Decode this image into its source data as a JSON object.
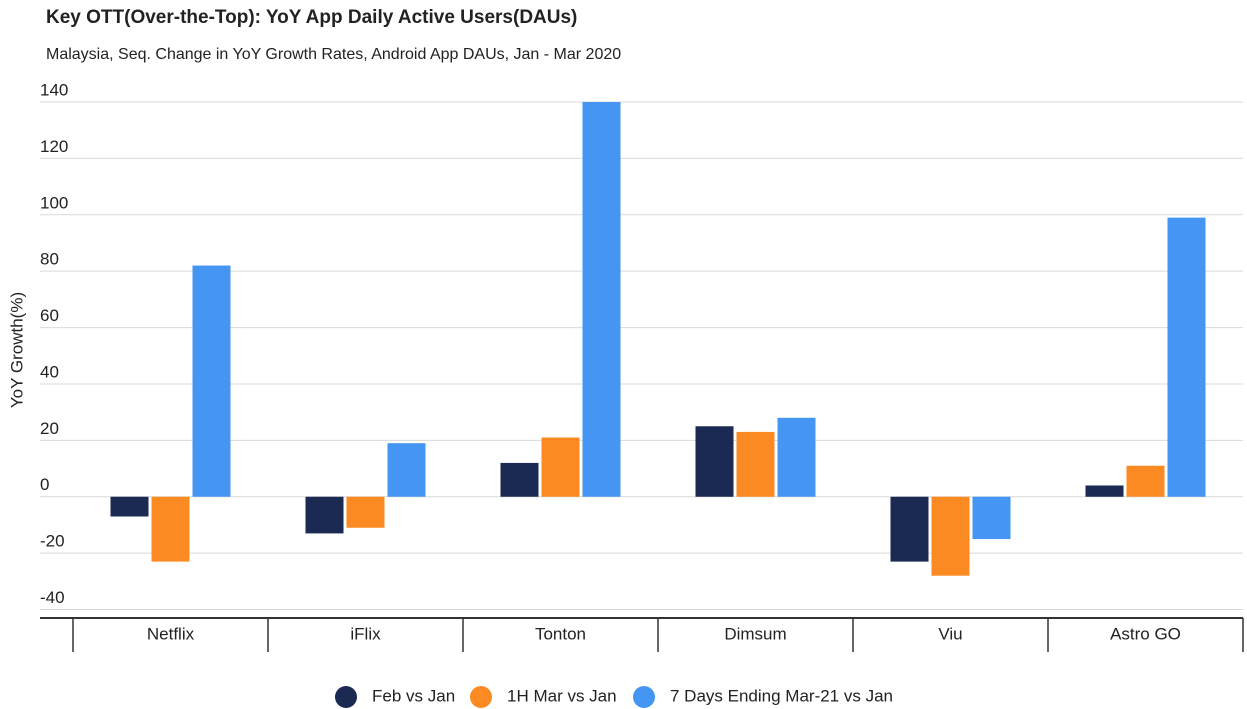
{
  "chart_data": {
    "type": "bar",
    "title": "Key OTT(Over-the-Top): YoY App Daily Active Users(DAUs)",
    "subtitle": "Malaysia, Seq. Change in YoY Growth Rates, Android App DAUs, Jan - Mar 2020",
    "y_label": "YoY Growth(%)",
    "categories": [
      "Netflix",
      "iFlix",
      "Tonton",
      "Dimsum",
      "Viu",
      "Astro GO"
    ],
    "series": [
      {
        "name": "Feb vs Jan",
        "color": "#1b2a52",
        "values": [
          -7,
          -13,
          12,
          25,
          -23,
          4
        ]
      },
      {
        "name": "1H Mar vs Jan",
        "color": "#fb8a22",
        "values": [
          -23,
          -11,
          21,
          23,
          -28,
          11
        ]
      },
      {
        "name": "7 Days Ending Mar-21 vs Jan",
        "color": "#4596f2",
        "values": [
          82,
          19,
          140,
          28,
          -15,
          99
        ]
      }
    ],
    "ylim": [
      -43,
      140
    ],
    "yticks": [
      -40,
      -20,
      0,
      20,
      40,
      60,
      80,
      100,
      120,
      140
    ],
    "grid": true
  }
}
